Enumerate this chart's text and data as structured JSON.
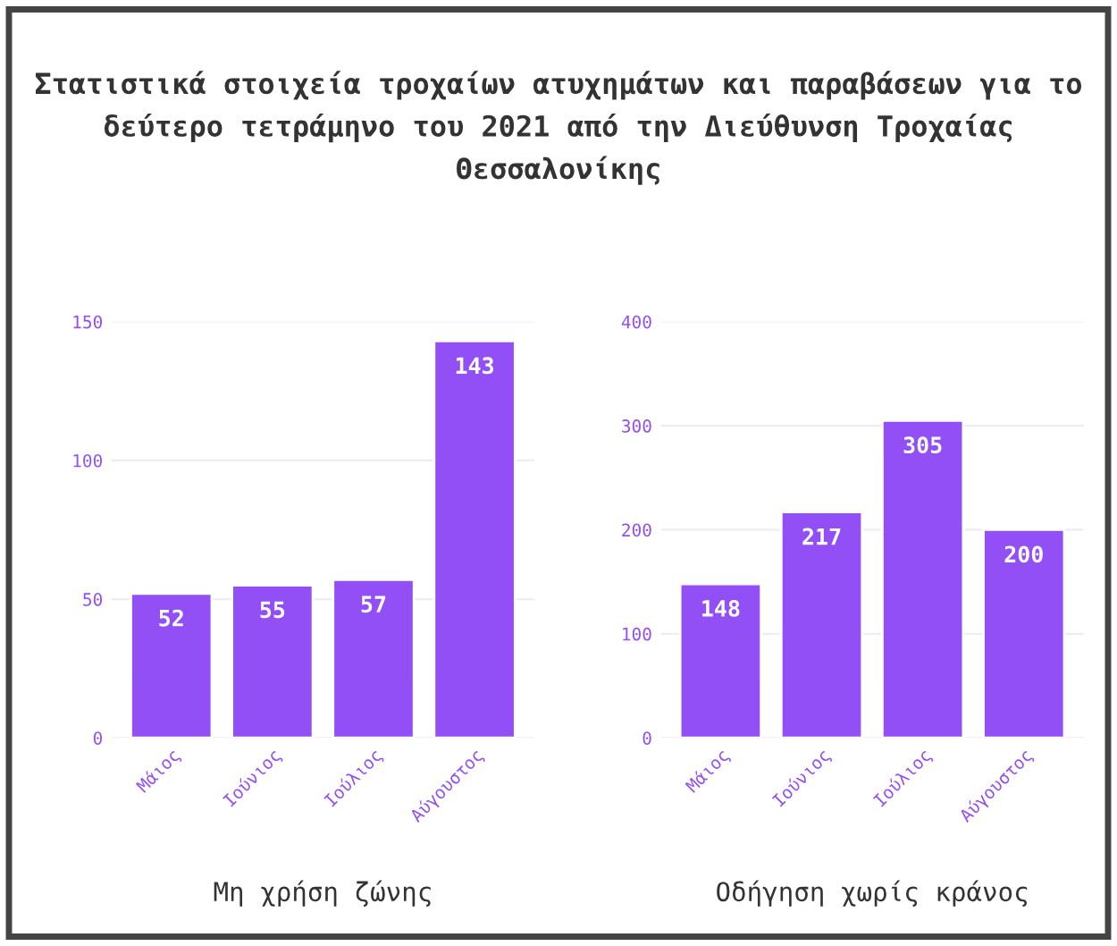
{
  "chart_data": [
    {
      "type": "bar",
      "title": "Στατιστικά στοιχεία τροχαίων ατυχημάτων και παραβάσεων για το δεύτερο τετράμηνο του 2021 από την Διεύθυνση Τροχαίας Θεσσαλονίκης",
      "xlabel": "Μη χρήση ζώνης",
      "categories": [
        "Μάιος",
        "Ιούνιος",
        "Ιούλιος",
        "Αύγουστος"
      ],
      "values": [
        52,
        55,
        57,
        143
      ],
      "color": "#914ff5",
      "ylim": [
        0,
        150
      ],
      "yticks": [
        0,
        50,
        100,
        150
      ],
      "grid": "y",
      "data_labels": true,
      "legend": false
    },
    {
      "type": "bar",
      "xlabel": "Οδήγηση χωρίς κράνος",
      "categories": [
        "Μάιος",
        "Ιούνιος",
        "Ιούλιος",
        "Αύγουστος"
      ],
      "values": [
        148,
        217,
        305,
        200
      ],
      "color": "#914ff5",
      "ylim": [
        0,
        400
      ],
      "yticks": [
        0,
        100,
        200,
        300,
        400
      ],
      "grid": "y",
      "data_labels": true,
      "legend": false
    }
  ]
}
